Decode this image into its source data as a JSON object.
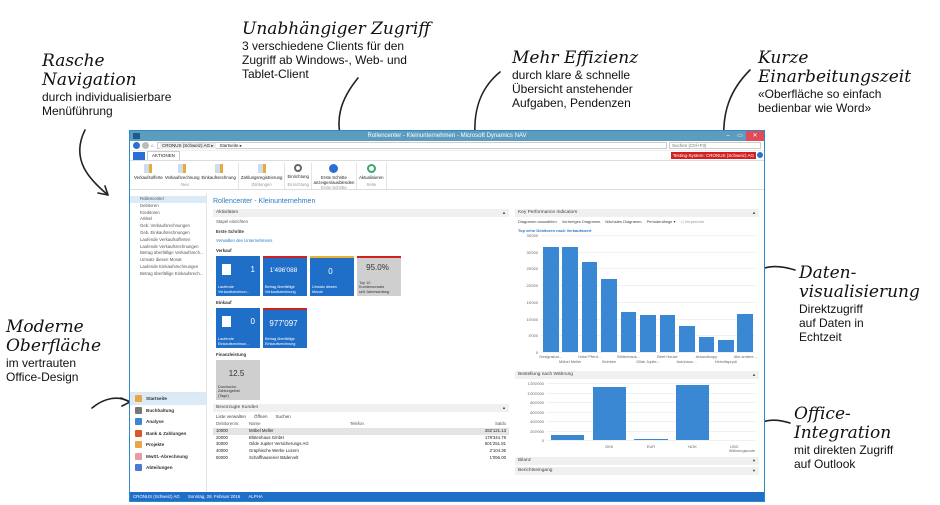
{
  "annotations": {
    "navigation": {
      "heading_1": "Rasche",
      "heading_2": "Navigation",
      "line_1": "durch individualisierbare",
      "line_2": "Menüführung"
    },
    "access": {
      "heading": "Unabhängiger Zugriff",
      "line_1": "3 verschiedene Clients für den",
      "line_2": "Zugriff ab Windows-, Web- und",
      "line_3": "Tablet-Client"
    },
    "efficiency": {
      "heading": "Mehr Effizienz",
      "line_1": "durch klare & schnelle",
      "line_2": "Übersicht anstehender",
      "line_3": "Aufgaben, Pendenzen"
    },
    "training": {
      "heading_1": "Kurze",
      "heading_2": "Einarbeitungszeit",
      "line_1": "«Oberfläche so einfach",
      "line_2": "bedienbar wie Word»"
    },
    "visualization": {
      "heading_1": "Daten-",
      "heading_2": "visualisierung",
      "line_1": "Direktzugriff",
      "line_2": "auf Daten in",
      "line_3": "Echtzeit"
    },
    "office": {
      "heading_1": "Office-",
      "heading_2": "Integration",
      "line_1": "mit direkten Zugriff",
      "line_2": "auf Outlook"
    },
    "modern": {
      "heading_1": "Moderne",
      "heading_2": "Oberfläche",
      "line_1": "im vertrauten",
      "line_2": "Office-Design"
    }
  },
  "window": {
    "title": "Rollencenter - Kleinunternehmen - Microsoft Dynamics NAV",
    "breadcrumb_company": "CRONUS (Schweiz) AG ▸",
    "breadcrumb_page": "Startseite ▸",
    "search_placeholder": "Suchen (Ctrl+F3)",
    "minimize": "–",
    "maximize": "▭",
    "close": "✕"
  },
  "ribbon": {
    "tab": "AKTIONEN",
    "testing_badge": "Testing-System: CRONUS (Schweiz) AG",
    "groups": [
      {
        "name": "Neu",
        "buttons": [
          "Verkaufsofferte",
          "Verkaufsrechnung",
          "Einkaufsrechnung"
        ]
      },
      {
        "name": "Zahlungen",
        "buttons": [
          "Zahlungsregistrierung"
        ]
      },
      {
        "name": "Einrichtung",
        "buttons": [
          "Einrichtung"
        ]
      },
      {
        "name": "Erste Schritte",
        "buttons": [
          "Erste Schritte anzeigen/ausblenden"
        ]
      },
      {
        "name": "Seite",
        "buttons": [
          "Aktualisieren"
        ]
      }
    ]
  },
  "nav": {
    "items": [
      "Rollencenter",
      "Debitoren",
      "Kreditoren",
      "Artikel",
      "Geb. Verkaufsrechnungen",
      "Geb. Einkaufsrechnungen",
      "Laufende Verkaufsofferten",
      "Laufende Verkaufsrechnungen",
      "Betrag überfällige Verkaufsrech...",
      "Umsatz diesen Monat",
      "Laufende Einkaufsrechnungen",
      "Betrag überfällige Einkaufsrech..."
    ],
    "departments": [
      "Startseite",
      "Buchhaltung",
      "Analyse",
      "Bank & Zahlungen",
      "Projekte",
      "MwSt.-Abrechnung",
      "Abteilungen"
    ]
  },
  "main": {
    "page_title": "Rollencenter - Kleinunternehmen",
    "activities_title": "Aktivitäten",
    "setup_cues": "Stapel einrichten",
    "first_steps": "Erste Schritte",
    "manage_company": "Verwalten des Unternehmens",
    "sales_title": "Verkauf",
    "sales_tiles": [
      {
        "value": "1",
        "caption_1": "Laufende",
        "caption_2": "Verkaufsrechnun..."
      },
      {
        "value": "1'496'088",
        "caption_1": "Betrag überfällige",
        "caption_2": "Verkaufsrechnung"
      },
      {
        "value": "0",
        "caption_1": "Umsatz diesen",
        "caption_2": "Monat"
      },
      {
        "value": "95.0%",
        "caption_1": "Top 10",
        "caption_2": "Kundenumsatz",
        "caption_3": "seit Jahresanfang"
      }
    ],
    "purchase_title": "Einkauf",
    "purchase_tiles": [
      {
        "value": "0",
        "caption_1": "Laufende",
        "caption_2": "Einkaufsrechnun..."
      },
      {
        "value": "977'097",
        "caption_1": "Betrag überfällige",
        "caption_2": "Einkaufsrechnung"
      }
    ],
    "finance_title": "Finanzleistung",
    "finance_tile": {
      "value": "12.5",
      "caption_1": "Durchschn.",
      "caption_2": "Zahlungsfrist",
      "caption_3": "(Tage)"
    },
    "customers": {
      "title": "Bevorzugte Kunden",
      "actions": [
        "Liste verwalten",
        "Öffnen",
        "Suchen"
      ],
      "columns": [
        "Debitorennr.",
        "Name",
        "Telefon",
        "Saldo"
      ],
      "rows": [
        [
          "10000",
          "Möbel Meller",
          "",
          "282'121.13"
        ],
        [
          "20000",
          "Blütenhaus GmbH",
          "",
          "178'344.79"
        ],
        [
          "30000",
          "Gilde Jupiter Versicherungs AG",
          "",
          "501'251.81"
        ],
        [
          "40000",
          "Graphische Werke Luzern",
          "",
          "2'104.35"
        ],
        [
          "50000",
          "Schaffhausener Bädervelt",
          "",
          "1'056.00"
        ]
      ]
    }
  },
  "kpi": {
    "title": "Key Performance Indicators",
    "toolbar": [
      "Diagramm auswählen",
      "Vorheriges Diagramm",
      "Nächstes Diagramm",
      "Periodenlänge ▾",
      "◁ Vorperiode"
    ],
    "chart_title": "Top zehn Debitoren nach Verkaufswert"
  },
  "orders": {
    "title": "Bestellung nach Währung",
    "xlabel": "Währungscode"
  },
  "bilanz": "Bilanz",
  "reports": "Berichtseingang",
  "status": {
    "company": "CRONUS (Schweiz) AG",
    "date": "Sonntag, 28. Februar 2016",
    "user": "ALPHA"
  },
  "colors": {
    "accent": "#1f6fc9",
    "bar": "#3a87d4",
    "alert": "#d12020",
    "titlebar": "#5d9cbf"
  },
  "chart_data": [
    {
      "type": "bar",
      "title": "Top zehn Debitoren nach Verkaufswert",
      "categories": [
        "Designstud...",
        "Möbel Meller",
        "Hotel Pferd...",
        "Klubben",
        "Blütenhaus...",
        "Gilde Jupite...",
        "Beef House",
        "Autohaus ...",
        "Antarcticopy",
        "Heimilisprydi",
        "Alle andere..."
      ],
      "values": [
        31500,
        31300,
        26800,
        21700,
        11900,
        11200,
        11000,
        7800,
        4500,
        3600,
        11500
      ],
      "ylim": [
        0,
        35000
      ],
      "yticks": [
        "0",
        "5'000",
        "10'000",
        "15'000",
        "20'000",
        "25'000",
        "30'000",
        "35'000"
      ]
    },
    {
      "type": "bar",
      "title": "Bestellung nach Währung",
      "categories": [
        "",
        "DKK",
        "EUR",
        "NOK",
        "USD"
      ],
      "values": [
        110000,
        1110000,
        25000,
        1160000,
        0
      ],
      "xlabel": "Währungscode",
      "ylim": [
        0,
        1200000
      ],
      "yticks": [
        "0",
        "200'000",
        "400'000",
        "600'000",
        "800'000",
        "1'000'000",
        "1'200'000"
      ]
    }
  ]
}
